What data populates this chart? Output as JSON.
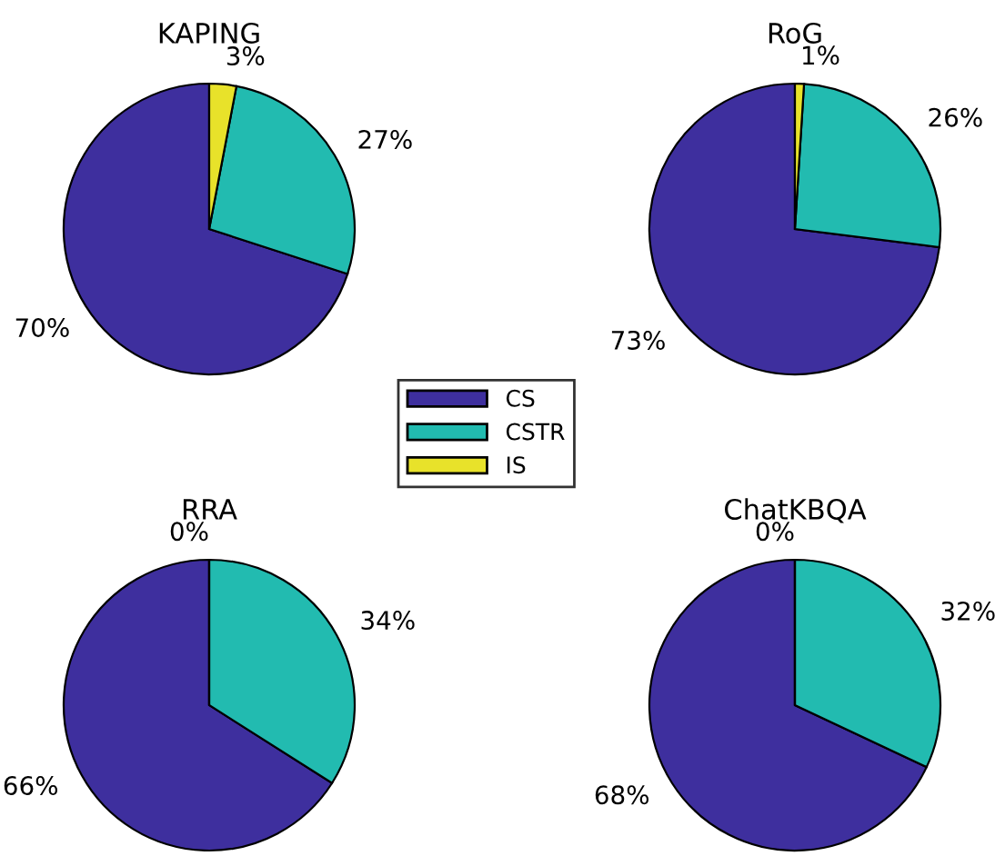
{
  "chart_data": [
    {
      "type": "pie",
      "title": "KAPING",
      "categories": [
        "CS",
        "CSTR",
        "IS"
      ],
      "values": [
        70,
        27,
        3
      ],
      "value_labels": [
        "70%",
        "27%",
        "3%"
      ],
      "colors": [
        "#3e2f9e",
        "#22bbb0",
        "#e8e22a"
      ],
      "legend": "bottom right"
    },
    {
      "type": "pie",
      "title": "RoG",
      "values": [
        73,
        26,
        1
      ],
      "value_labels": [
        "73%",
        "26%",
        "1%"
      ],
      "colors": [
        "#3e2f9e",
        "#22bbb0",
        "#e8e22a"
      ]
    },
    {
      "type": "pie",
      "title": "RRA",
      "values": [
        66,
        34,
        0
      ],
      "value_labels": [
        "66%",
        "34%",
        "0%"
      ],
      "colors": [
        "#3e2f9e",
        "#22bbb0",
        "#e8e22a"
      ]
    },
    {
      "type": "pie",
      "title": "ChatKBQA",
      "values": [
        68,
        32,
        0
      ],
      "value_labels": [
        "68%",
        "32%",
        "0%"
      ],
      "colors": [
        "#3e2f9e",
        "#22bbb0",
        "#e8e22a"
      ]
    }
  ]
}
